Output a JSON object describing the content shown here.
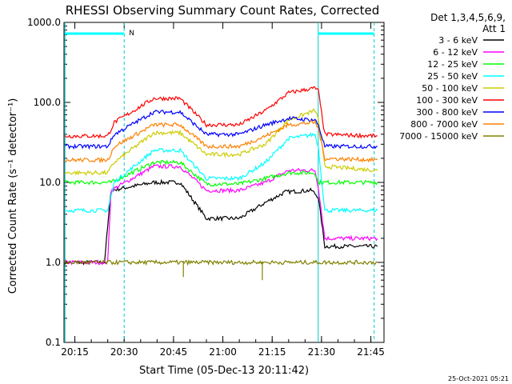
{
  "chart_data": {
    "type": "line",
    "title": "RHESSI Observing Summary Count Rates, Corrected",
    "xlabel": "Start Time (05-Dec-13 20:11:42)",
    "ylabel": "Corrected Count Rate (s⁻¹ detector⁻¹)",
    "y_scale": "log",
    "ylim": [
      0.1,
      1000.0
    ],
    "xlim_minutes_label": [
      "20:11:42",
      "21:49"
    ],
    "x_ticks": [
      "20:15",
      "20:30",
      "20:45",
      "21:00",
      "21:15",
      "21:30",
      "21:45"
    ],
    "y_ticks": [
      "0.1",
      "1.0",
      "10.0",
      "100.0",
      "1000.0"
    ],
    "legend_header": [
      "Det 1,3,4,5,6,9,",
      "Att 1"
    ],
    "legend_position": "right",
    "annotations": {
      "marker_label": "N",
      "footer_date": "25-Oct-2021 05:21"
    },
    "series": [
      {
        "name": "3 - 6 keV",
        "color": "#000000",
        "points": [
          [
            "20:12",
            0
          ],
          [
            "20:24",
            0
          ],
          [
            "20:26",
            0.9
          ],
          [
            "20:39",
            1.0
          ],
          [
            "20:47",
            1.0
          ],
          [
            "20:55",
            0.55
          ],
          [
            "21:05",
            0.55
          ],
          [
            "21:13",
            0.75
          ],
          [
            "21:19",
            0.88
          ],
          [
            "21:27",
            0.9
          ],
          [
            "21:29",
            0.82
          ],
          [
            "21:31",
            0.2
          ],
          [
            "21:47",
            0.2
          ]
        ]
      },
      {
        "name": "6 - 12 keV",
        "color": "#ff00ff",
        "points": [
          [
            "20:12",
            0
          ],
          [
            "20:25",
            0
          ],
          [
            "20:26",
            0.9
          ],
          [
            "20:39",
            1.2
          ],
          [
            "20:47",
            1.2
          ],
          [
            "20:55",
            0.9
          ],
          [
            "21:05",
            0.9
          ],
          [
            "21:13",
            1.0
          ],
          [
            "21:20",
            1.15
          ],
          [
            "21:28",
            1.15
          ],
          [
            "21:29",
            0.95
          ],
          [
            "21:31",
            0.3
          ],
          [
            "21:47",
            0.3
          ]
        ]
      },
      {
        "name": "12 - 25 keV",
        "color": "#00ff00",
        "points": [
          [
            "20:12",
            1.0
          ],
          [
            "20:25",
            1.0
          ],
          [
            "20:26",
            1.0
          ],
          [
            "20:39",
            1.25
          ],
          [
            "20:47",
            1.25
          ],
          [
            "20:55",
            0.98
          ],
          [
            "21:05",
            0.98
          ],
          [
            "21:13",
            1.05
          ],
          [
            "21:20",
            1.12
          ],
          [
            "21:28",
            1.12
          ],
          [
            "21:29",
            1.0
          ],
          [
            "21:31",
            1.0
          ],
          [
            "21:47",
            1.0
          ]
        ]
      },
      {
        "name": "25 - 50 keV",
        "color": "#00ffff",
        "points": [
          [
            "20:12",
            0.65
          ],
          [
            "20:25",
            0.65
          ],
          [
            "20:27",
            1.0
          ],
          [
            "20:39",
            1.4
          ],
          [
            "20:47",
            1.4
          ],
          [
            "20:55",
            1.05
          ],
          [
            "21:05",
            1.05
          ],
          [
            "21:13",
            1.25
          ],
          [
            "21:20",
            1.55
          ],
          [
            "21:28",
            1.6
          ],
          [
            "21:29",
            1.45
          ],
          [
            "21:31",
            0.65
          ],
          [
            "21:47",
            0.65
          ]
        ]
      },
      {
        "name": "50 - 100 keV",
        "color": "#cccc00",
        "points": [
          [
            "20:12",
            1.12
          ],
          [
            "20:25",
            1.12
          ],
          [
            "20:27",
            1.25
          ],
          [
            "20:39",
            1.62
          ],
          [
            "20:47",
            1.62
          ],
          [
            "20:55",
            1.35
          ],
          [
            "21:05",
            1.35
          ],
          [
            "21:13",
            1.48
          ],
          [
            "21:20",
            1.78
          ],
          [
            "21:28",
            1.9
          ],
          [
            "21:29",
            1.8
          ],
          [
            "21:31",
            1.2
          ],
          [
            "21:47",
            1.15
          ]
        ]
      },
      {
        "name": "100 - 300 keV",
        "color": "#ff0000",
        "points": [
          [
            "20:12",
            1.58
          ],
          [
            "20:25",
            1.58
          ],
          [
            "20:27",
            1.75
          ],
          [
            "20:39",
            2.05
          ],
          [
            "20:47",
            2.05
          ],
          [
            "20:55",
            1.72
          ],
          [
            "21:05",
            1.72
          ],
          [
            "21:13",
            1.9
          ],
          [
            "21:20",
            2.12
          ],
          [
            "21:28",
            2.18
          ],
          [
            "21:29",
            2.15
          ],
          [
            "21:31",
            1.6
          ],
          [
            "21:47",
            1.58
          ]
        ]
      },
      {
        "name": "300 - 800 keV",
        "color": "#0000ff",
        "points": [
          [
            "20:12",
            1.45
          ],
          [
            "20:25",
            1.45
          ],
          [
            "20:27",
            1.6
          ],
          [
            "20:39",
            1.88
          ],
          [
            "20:47",
            1.88
          ],
          [
            "20:55",
            1.6
          ],
          [
            "21:05",
            1.6
          ],
          [
            "21:13",
            1.72
          ],
          [
            "21:20",
            1.8
          ],
          [
            "21:28",
            1.78
          ],
          [
            "21:29",
            1.72
          ],
          [
            "21:31",
            1.45
          ],
          [
            "21:47",
            1.45
          ]
        ]
      },
      {
        "name": "800 - 7000 keV",
        "color": "#ff8000",
        "points": [
          [
            "20:12",
            1.28
          ],
          [
            "20:25",
            1.28
          ],
          [
            "20:27",
            1.45
          ],
          [
            "20:39",
            1.72
          ],
          [
            "20:47",
            1.72
          ],
          [
            "20:55",
            1.45
          ],
          [
            "21:05",
            1.45
          ],
          [
            "21:13",
            1.58
          ],
          [
            "21:20",
            1.72
          ],
          [
            "21:28",
            1.75
          ],
          [
            "21:29",
            1.68
          ],
          [
            "21:31",
            1.3
          ],
          [
            "21:47",
            1.28
          ]
        ]
      },
      {
        "name": "7000 - 15000 keV",
        "color": "#808000",
        "points": [
          [
            "20:12",
            0
          ],
          [
            "20:48",
            0
          ],
          [
            "20:48",
            -0.2
          ],
          [
            "20:48",
            0
          ],
          [
            "21:12",
            0
          ],
          [
            "21:12",
            -0.2
          ],
          [
            "21:12",
            0
          ],
          [
            "21:47",
            0
          ]
        ]
      }
    ]
  }
}
